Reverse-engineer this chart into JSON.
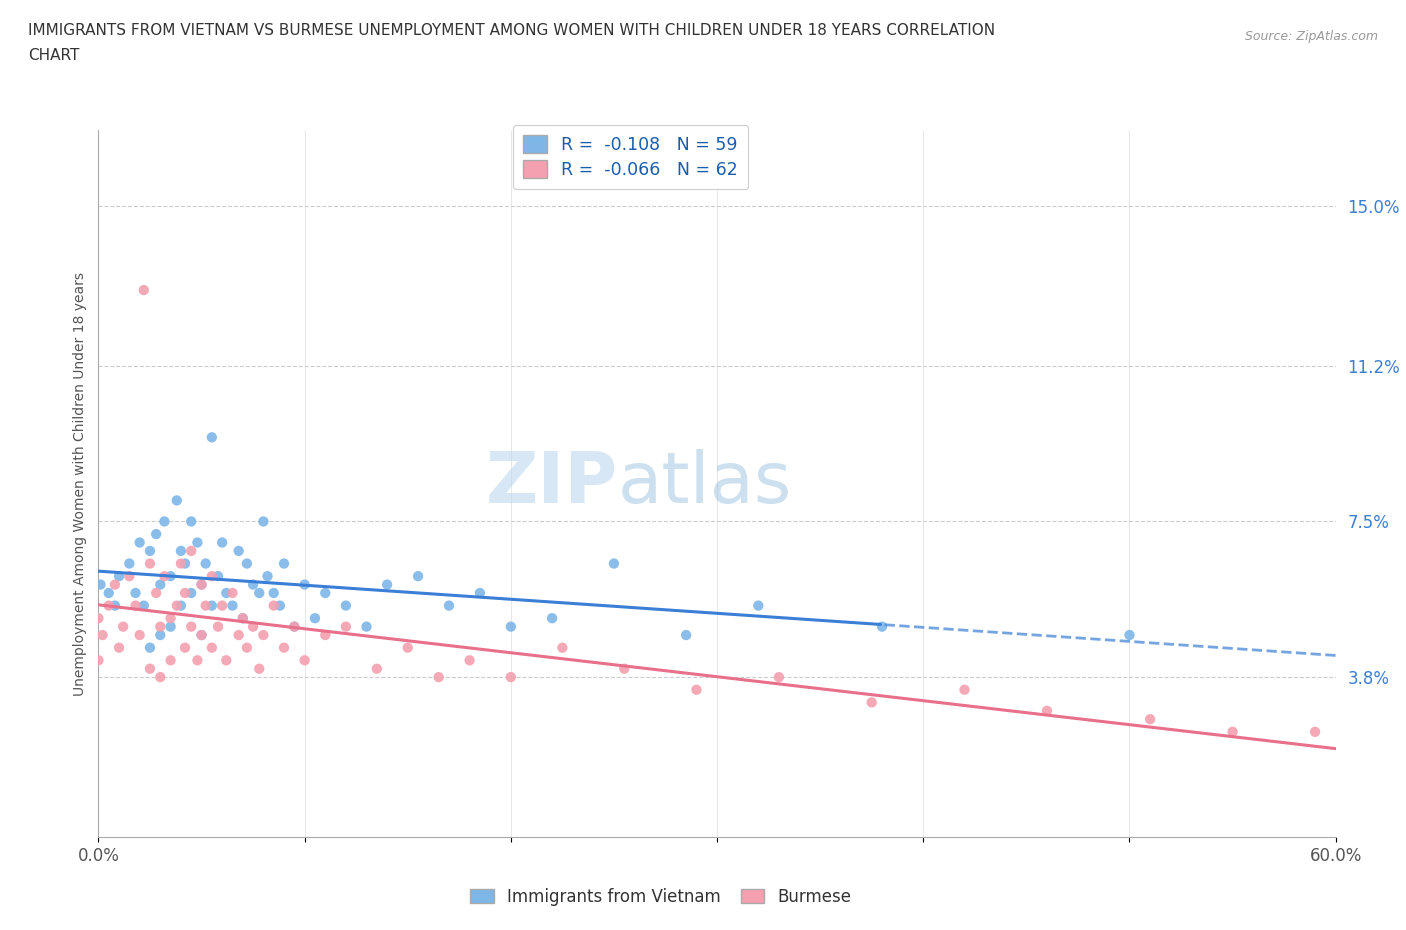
{
  "title_line1": "IMMIGRANTS FROM VIETNAM VS BURMESE UNEMPLOYMENT AMONG WOMEN WITH CHILDREN UNDER 18 YEARS CORRELATION",
  "title_line2": "CHART",
  "source": "Source: ZipAtlas.com",
  "ylabel": "Unemployment Among Women with Children Under 18 years",
  "xlim": [
    0.0,
    0.6
  ],
  "ylim": [
    0.0,
    0.168
  ],
  "xticks": [
    0.0,
    0.1,
    0.2,
    0.3,
    0.4,
    0.5,
    0.6
  ],
  "xtick_labels": [
    "0.0%",
    "",
    "",
    "",
    "",
    "",
    "60.0%"
  ],
  "ytick_labels_right": [
    "3.8%",
    "7.5%",
    "11.2%",
    "15.0%"
  ],
  "ytick_values_right": [
    0.038,
    0.075,
    0.112,
    0.15
  ],
  "vietnam_color": "#7EB6E8",
  "burmese_color": "#F4A0B0",
  "trend_vietnam_color": "#3A7FD5",
  "trend_burmese_color": "#E8708A",
  "watermark_zip": "ZIP",
  "watermark_atlas": "atlas",
  "vietnam_x": [
    0.001,
    0.005,
    0.008,
    0.01,
    0.015,
    0.018,
    0.02,
    0.022,
    0.025,
    0.025,
    0.028,
    0.03,
    0.03,
    0.032,
    0.035,
    0.035,
    0.038,
    0.04,
    0.04,
    0.042,
    0.045,
    0.045,
    0.048,
    0.05,
    0.05,
    0.052,
    0.055,
    0.055,
    0.058,
    0.06,
    0.062,
    0.065,
    0.068,
    0.07,
    0.072,
    0.075,
    0.078,
    0.08,
    0.082,
    0.085,
    0.088,
    0.09,
    0.095,
    0.1,
    0.105,
    0.11,
    0.12,
    0.13,
    0.14,
    0.155,
    0.17,
    0.185,
    0.2,
    0.22,
    0.25,
    0.285,
    0.32,
    0.38,
    0.5
  ],
  "vietnam_y": [
    0.06,
    0.058,
    0.055,
    0.062,
    0.065,
    0.058,
    0.07,
    0.055,
    0.068,
    0.045,
    0.072,
    0.06,
    0.048,
    0.075,
    0.062,
    0.05,
    0.08,
    0.068,
    0.055,
    0.065,
    0.075,
    0.058,
    0.07,
    0.06,
    0.048,
    0.065,
    0.095,
    0.055,
    0.062,
    0.07,
    0.058,
    0.055,
    0.068,
    0.052,
    0.065,
    0.06,
    0.058,
    0.075,
    0.062,
    0.058,
    0.055,
    0.065,
    0.05,
    0.06,
    0.052,
    0.058,
    0.055,
    0.05,
    0.06,
    0.062,
    0.055,
    0.058,
    0.05,
    0.052,
    0.065,
    0.048,
    0.055,
    0.05,
    0.048
  ],
  "burmese_x": [
    0.0,
    0.0,
    0.002,
    0.005,
    0.008,
    0.01,
    0.012,
    0.015,
    0.018,
    0.02,
    0.022,
    0.025,
    0.025,
    0.028,
    0.03,
    0.03,
    0.032,
    0.035,
    0.035,
    0.038,
    0.04,
    0.042,
    0.042,
    0.045,
    0.045,
    0.048,
    0.05,
    0.05,
    0.052,
    0.055,
    0.055,
    0.058,
    0.06,
    0.062,
    0.065,
    0.068,
    0.07,
    0.072,
    0.075,
    0.078,
    0.08,
    0.085,
    0.09,
    0.095,
    0.1,
    0.11,
    0.12,
    0.135,
    0.15,
    0.165,
    0.18,
    0.2,
    0.225,
    0.255,
    0.29,
    0.33,
    0.375,
    0.42,
    0.46,
    0.51,
    0.55,
    0.59
  ],
  "burmese_y": [
    0.052,
    0.042,
    0.048,
    0.055,
    0.06,
    0.045,
    0.05,
    0.062,
    0.055,
    0.048,
    0.13,
    0.065,
    0.04,
    0.058,
    0.05,
    0.038,
    0.062,
    0.052,
    0.042,
    0.055,
    0.065,
    0.058,
    0.045,
    0.068,
    0.05,
    0.042,
    0.06,
    0.048,
    0.055,
    0.062,
    0.045,
    0.05,
    0.055,
    0.042,
    0.058,
    0.048,
    0.052,
    0.045,
    0.05,
    0.04,
    0.048,
    0.055,
    0.045,
    0.05,
    0.042,
    0.048,
    0.05,
    0.04,
    0.045,
    0.038,
    0.042,
    0.038,
    0.045,
    0.04,
    0.035,
    0.038,
    0.032,
    0.035,
    0.03,
    0.028,
    0.025,
    0.025
  ]
}
